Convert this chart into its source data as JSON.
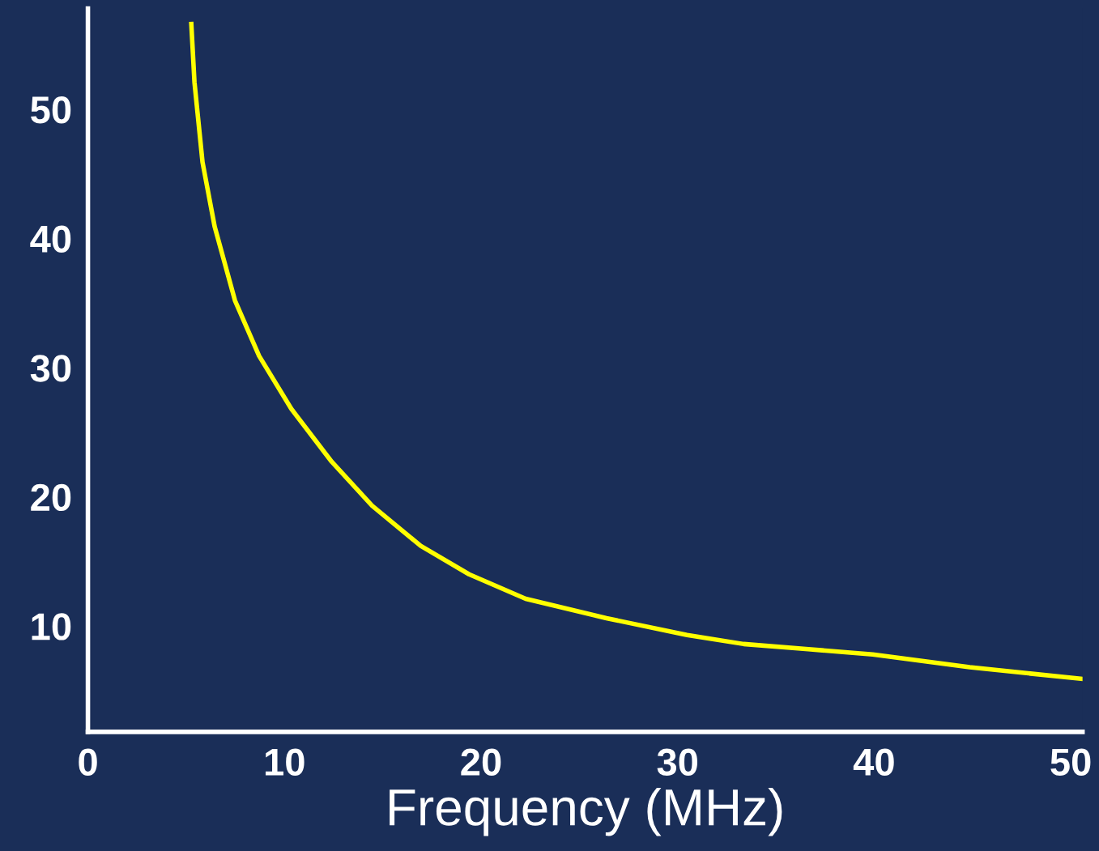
{
  "chart_data": {
    "type": "line",
    "xlabel": "Frequency (MHz)",
    "series": [
      {
        "color": "#ffff00",
        "x": [
          5.26,
          5.42,
          5.83,
          6.45,
          7.48,
          8.71,
          10.35,
          12.41,
          14.46,
          16.93,
          19.39,
          22.27,
          26.38,
          30.48,
          33.36,
          36.65,
          39.93,
          44.86,
          50.6
        ],
        "values": [
          56.6,
          52.1,
          45.9,
          40.9,
          35.2,
          30.9,
          26.8,
          22.7,
          19.3,
          16.2,
          14.0,
          12.1,
          10.6,
          9.3,
          8.6,
          8.2,
          7.8,
          6.8,
          5.9
        ]
      }
    ],
    "xlim": [
      0,
      50.6
    ],
    "ylim": [
      1.8,
      57.8
    ],
    "xticks": [
      0,
      10,
      20,
      30,
      40,
      50
    ],
    "yticks": [
      10,
      20,
      30,
      40,
      50
    ],
    "grid": false,
    "marker": "none",
    "line_style": "solid"
  }
}
